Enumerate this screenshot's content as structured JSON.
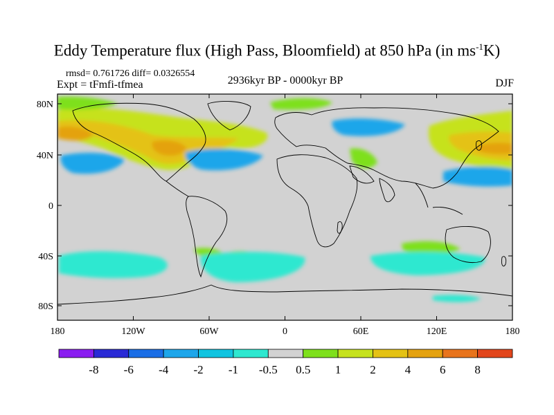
{
  "title": {
    "main": "Eddy Temperature flux (High Pass, Bloomfield) at 850 hPa (in ms",
    "sup": "-1",
    "end": "K)"
  },
  "stats": "rmsd= 0.761726 diff= 0.0326554",
  "experiment": "Expt = tFmfi-tfmea",
  "period": "2936kyr BP - 0000kyr BP",
  "season": "DJF",
  "map": {
    "background_color": "#d2d2d2",
    "lat_ticks": [
      "80N",
      "40N",
      "0",
      "40S",
      "80S"
    ],
    "lon_ticks": [
      "180",
      "120W",
      "60W",
      "0",
      "60E",
      "120E",
      "180"
    ]
  },
  "colorbar": {
    "colors": [
      "#8a1df0",
      "#2a2ad6",
      "#1a6ee6",
      "#1ea6ea",
      "#10c4e0",
      "#2ee8d0",
      "#d2d2d2",
      "#7ee01c",
      "#c6e21e",
      "#e4c214",
      "#e4a210",
      "#e8741c",
      "#e2461c"
    ],
    "labels": [
      "-8",
      "-6",
      "-4",
      "-2",
      "-1",
      "-0.5",
      "0.5",
      "1",
      "2",
      "4",
      "6",
      "8"
    ]
  }
}
